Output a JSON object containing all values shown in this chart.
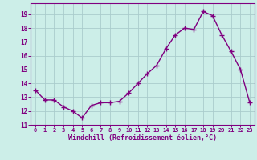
{
  "x": [
    0,
    1,
    2,
    3,
    4,
    5,
    6,
    7,
    8,
    9,
    10,
    11,
    12,
    13,
    14,
    15,
    16,
    17,
    18,
    19,
    20,
    21,
    22,
    23
  ],
  "y": [
    13.5,
    12.8,
    12.8,
    12.3,
    12.0,
    11.5,
    12.4,
    12.6,
    12.6,
    12.7,
    13.3,
    14.0,
    14.7,
    15.3,
    16.5,
    17.5,
    18.0,
    17.9,
    19.2,
    18.9,
    17.5,
    16.3,
    15.0,
    12.6
  ],
  "line_color": "#800080",
  "marker": "+",
  "marker_size": 4,
  "bg_color": "#cceee8",
  "grid_color": "#aacccc",
  "tick_color": "#800080",
  "label_color": "#800080",
  "xlabel": "Windchill (Refroidissement éolien,°C)",
  "ylim": [
    11,
    19.8
  ],
  "xlim": [
    -0.5,
    23.5
  ],
  "yticks": [
    11,
    12,
    13,
    14,
    15,
    16,
    17,
    18,
    19
  ],
  "xticks": [
    0,
    1,
    2,
    3,
    4,
    5,
    6,
    7,
    8,
    9,
    10,
    11,
    12,
    13,
    14,
    15,
    16,
    17,
    18,
    19,
    20,
    21,
    22,
    23
  ],
  "linewidth": 1.0,
  "marker_color": "#800080",
  "spine_color": "#800080"
}
